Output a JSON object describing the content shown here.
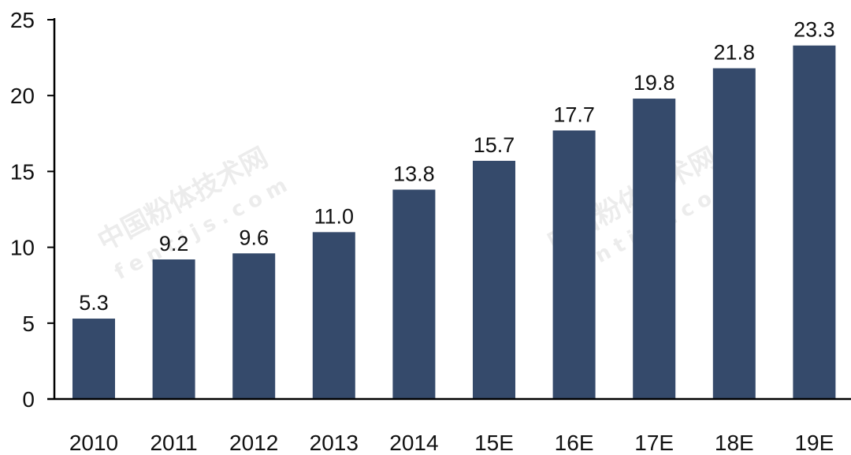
{
  "chart_data": {
    "type": "bar",
    "categories": [
      "2010",
      "2011",
      "2012",
      "2013",
      "2014",
      "15E",
      "16E",
      "17E",
      "18E",
      "19E"
    ],
    "values": [
      5.3,
      9.2,
      9.6,
      11.0,
      13.8,
      15.7,
      17.7,
      19.8,
      21.8,
      23.3
    ],
    "data_labels": [
      "5.3",
      "9.2",
      "9.6",
      "11.0",
      "13.8",
      "15.7",
      "17.7",
      "19.8",
      "21.8",
      "23.3"
    ],
    "title": "",
    "xlabel": "",
    "ylabel": "",
    "ylim": [
      0,
      25
    ],
    "yticks": [
      0,
      5,
      10,
      15,
      20,
      25
    ],
    "grid": false,
    "bar_color": "#354a6b"
  },
  "watermark": {
    "cn": "中国粉体技术网",
    "en": "fentijs.com"
  }
}
